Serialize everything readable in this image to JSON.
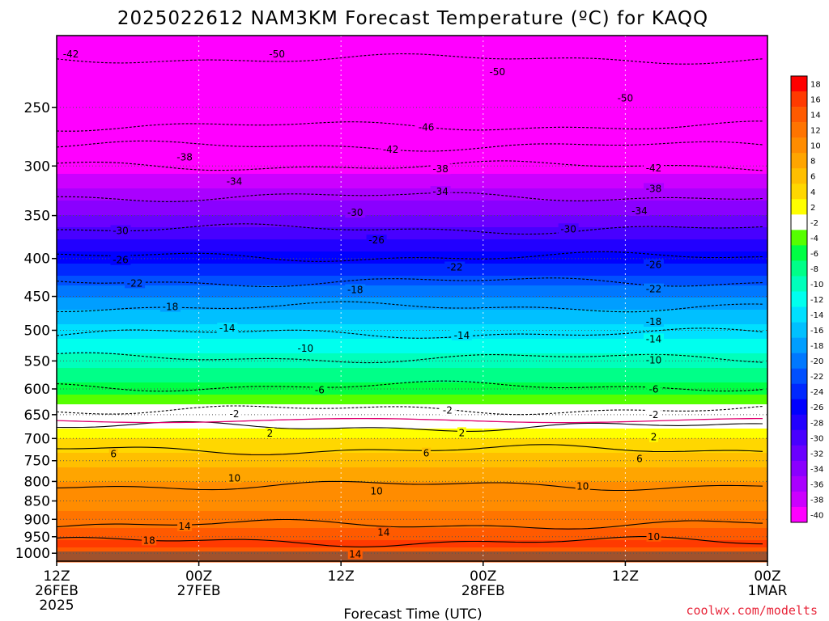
{
  "chart_data": {
    "type": "heatmap",
    "title": "2025022612 NAM3KM Forecast Temperature (ºC) for KAQQ",
    "xlabel": "Forecast Time (UTC)",
    "ylabel": "",
    "y_scale": "log-pressure",
    "ylim_hpa": [
      200,
      1025
    ],
    "y_ticks": [
      250,
      300,
      350,
      400,
      450,
      500,
      550,
      600,
      650,
      700,
      750,
      800,
      850,
      900,
      950,
      1000
    ],
    "x_ticks": [
      {
        "l1": "12Z",
        "l2": "26FEB",
        "l3": "2025"
      },
      {
        "l1": "00Z",
        "l2": "27FEB",
        "l3": ""
      },
      {
        "l1": "12Z",
        "l2": "",
        "l3": ""
      },
      {
        "l1": "00Z",
        "l2": "28FEB",
        "l3": ""
      },
      {
        "l1": "12Z",
        "l2": "",
        "l3": ""
      },
      {
        "l1": "00Z",
        "l2": "1MAR",
        "l3": ""
      }
    ],
    "colorbar": {
      "labels": [
        "18",
        "16",
        "14",
        "12",
        "10",
        "8",
        "6",
        "4",
        "2",
        "-2",
        "-4",
        "-6",
        "-8",
        "-10",
        "-12",
        "-14",
        "-16",
        "-18",
        "-20",
        "-22",
        "-24",
        "-26",
        "-28",
        "-30",
        "-32",
        "-34",
        "-36",
        "-38",
        "-40"
      ],
      "colors": [
        "#ff0000",
        "#ff3a00",
        "#ff5a00",
        "#ff7400",
        "#ff8c00",
        "#ffa500",
        "#ffbf00",
        "#ffd700",
        "#ffff00",
        "#ffffff",
        "#55ff00",
        "#00ff44",
        "#00ff88",
        "#00ffbb",
        "#00ffee",
        "#00e0ff",
        "#00c0ff",
        "#009eff",
        "#0078ff",
        "#0050ff",
        "#0028ff",
        "#0000ff",
        "#2200ff",
        "#4800ff",
        "#6a00ff",
        "#8a00ff",
        "#aa00ff",
        "#cc00ff",
        "#ff00ff"
      ]
    },
    "temperature_profile": [
      {
        "p": 200,
        "t": -52
      },
      {
        "p": 250,
        "t": -47
      },
      {
        "p": 300,
        "t": -41
      },
      {
        "p": 350,
        "t": -34
      },
      {
        "p": 400,
        "t": -27
      },
      {
        "p": 450,
        "t": -20
      },
      {
        "p": 500,
        "t": -15
      },
      {
        "p": 550,
        "t": -11
      },
      {
        "p": 600,
        "t": -7
      },
      {
        "p": 650,
        "t": -2
      },
      {
        "p": 680,
        "t": 2
      },
      {
        "p": 700,
        "t": 4
      },
      {
        "p": 750,
        "t": 7
      },
      {
        "p": 800,
        "t": 10
      },
      {
        "p": 850,
        "t": 11
      },
      {
        "p": 900,
        "t": 13
      },
      {
        "p": 950,
        "t": 15
      },
      {
        "p": 975,
        "t": 17
      },
      {
        "p": 1000,
        "t": 14
      }
    ],
    "contours": [
      {
        "v": -50,
        "p": 215
      },
      {
        "v": -46,
        "p": 265
      },
      {
        "v": -42,
        "p": 282
      },
      {
        "v": -38,
        "p": 300
      },
      {
        "v": -34,
        "p": 330
      },
      {
        "v": -30,
        "p": 365
      },
      {
        "v": -26,
        "p": 398
      },
      {
        "v": -22,
        "p": 430
      },
      {
        "v": -18,
        "p": 465
      },
      {
        "v": -14,
        "p": 505
      },
      {
        "v": -10,
        "p": 545
      },
      {
        "v": -6,
        "p": 595
      },
      {
        "v": -2,
        "p": 640
      },
      {
        "v": 2,
        "p": 675
      },
      {
        "v": 6,
        "p": 725
      },
      {
        "v": 10,
        "p": 810
      },
      {
        "v": 14,
        "p": 915
      },
      {
        "v": 18,
        "p": 965
      }
    ],
    "contour_labels": [
      {
        "text": "-42",
        "t": 0.02,
        "p": 212
      },
      {
        "text": "-50",
        "t": 0.31,
        "p": 212
      },
      {
        "text": "-50",
        "t": 0.62,
        "p": 224
      },
      {
        "text": "-50",
        "t": 0.8,
        "p": 243
      },
      {
        "text": "-46",
        "t": 0.52,
        "p": 266
      },
      {
        "text": "-42",
        "t": 0.47,
        "p": 285
      },
      {
        "text": "-42",
        "t": 0.84,
        "p": 302
      },
      {
        "text": "-38",
        "t": 0.18,
        "p": 292
      },
      {
        "text": "-38",
        "t": 0.54,
        "p": 303
      },
      {
        "text": "-38",
        "t": 0.84,
        "p": 322
      },
      {
        "text": "-34",
        "t": 0.25,
        "p": 315
      },
      {
        "text": "-34",
        "t": 0.54,
        "p": 325
      },
      {
        "text": "-34",
        "t": 0.82,
        "p": 345
      },
      {
        "text": "-30",
        "t": 0.09,
        "p": 367
      },
      {
        "text": "-30",
        "t": 0.42,
        "p": 347
      },
      {
        "text": "-30",
        "t": 0.72,
        "p": 365
      },
      {
        "text": "-26",
        "t": 0.09,
        "p": 402
      },
      {
        "text": "-26",
        "t": 0.45,
        "p": 378
      },
      {
        "text": "-26",
        "t": 0.84,
        "p": 408
      },
      {
        "text": "-22",
        "t": 0.11,
        "p": 432
      },
      {
        "text": "-22",
        "t": 0.56,
        "p": 411
      },
      {
        "text": "-22",
        "t": 0.84,
        "p": 440
      },
      {
        "text": "-18",
        "t": 0.16,
        "p": 465
      },
      {
        "text": "-18",
        "t": 0.42,
        "p": 441
      },
      {
        "text": "-18",
        "t": 0.84,
        "p": 487
      },
      {
        "text": "-14",
        "t": 0.24,
        "p": 497
      },
      {
        "text": "-14",
        "t": 0.57,
        "p": 508
      },
      {
        "text": "-14",
        "t": 0.84,
        "p": 514
      },
      {
        "text": "-10",
        "t": 0.35,
        "p": 529
      },
      {
        "text": "-10",
        "t": 0.84,
        "p": 549
      },
      {
        "text": "-6",
        "t": 0.37,
        "p": 602
      },
      {
        "text": "-6",
        "t": 0.84,
        "p": 601
      },
      {
        "text": "-2",
        "t": 0.25,
        "p": 649
      },
      {
        "text": "-2",
        "t": 0.55,
        "p": 641
      },
      {
        "text": "-2",
        "t": 0.84,
        "p": 650
      },
      {
        "text": "2",
        "t": 0.3,
        "p": 689
      },
      {
        "text": "2",
        "t": 0.57,
        "p": 688
      },
      {
        "text": "2",
        "t": 0.84,
        "p": 697
      },
      {
        "text": "6",
        "t": 0.08,
        "p": 735
      },
      {
        "text": "6",
        "t": 0.52,
        "p": 733
      },
      {
        "text": "6",
        "t": 0.82,
        "p": 746
      },
      {
        "text": "10",
        "t": 0.25,
        "p": 792
      },
      {
        "text": "10",
        "t": 0.45,
        "p": 825
      },
      {
        "text": "10",
        "t": 0.74,
        "p": 812
      },
      {
        "text": "10",
        "t": 0.84,
        "p": 950
      },
      {
        "text": "14",
        "t": 0.18,
        "p": 920
      },
      {
        "text": "14",
        "t": 0.46,
        "p": 938
      },
      {
        "text": "14",
        "t": 0.42,
        "p": 1003
      },
      {
        "text": "18",
        "t": 0.13,
        "p": 961
      }
    ],
    "ground_color": "#a0522d"
  },
  "credit": "coolwx.com/modelts"
}
